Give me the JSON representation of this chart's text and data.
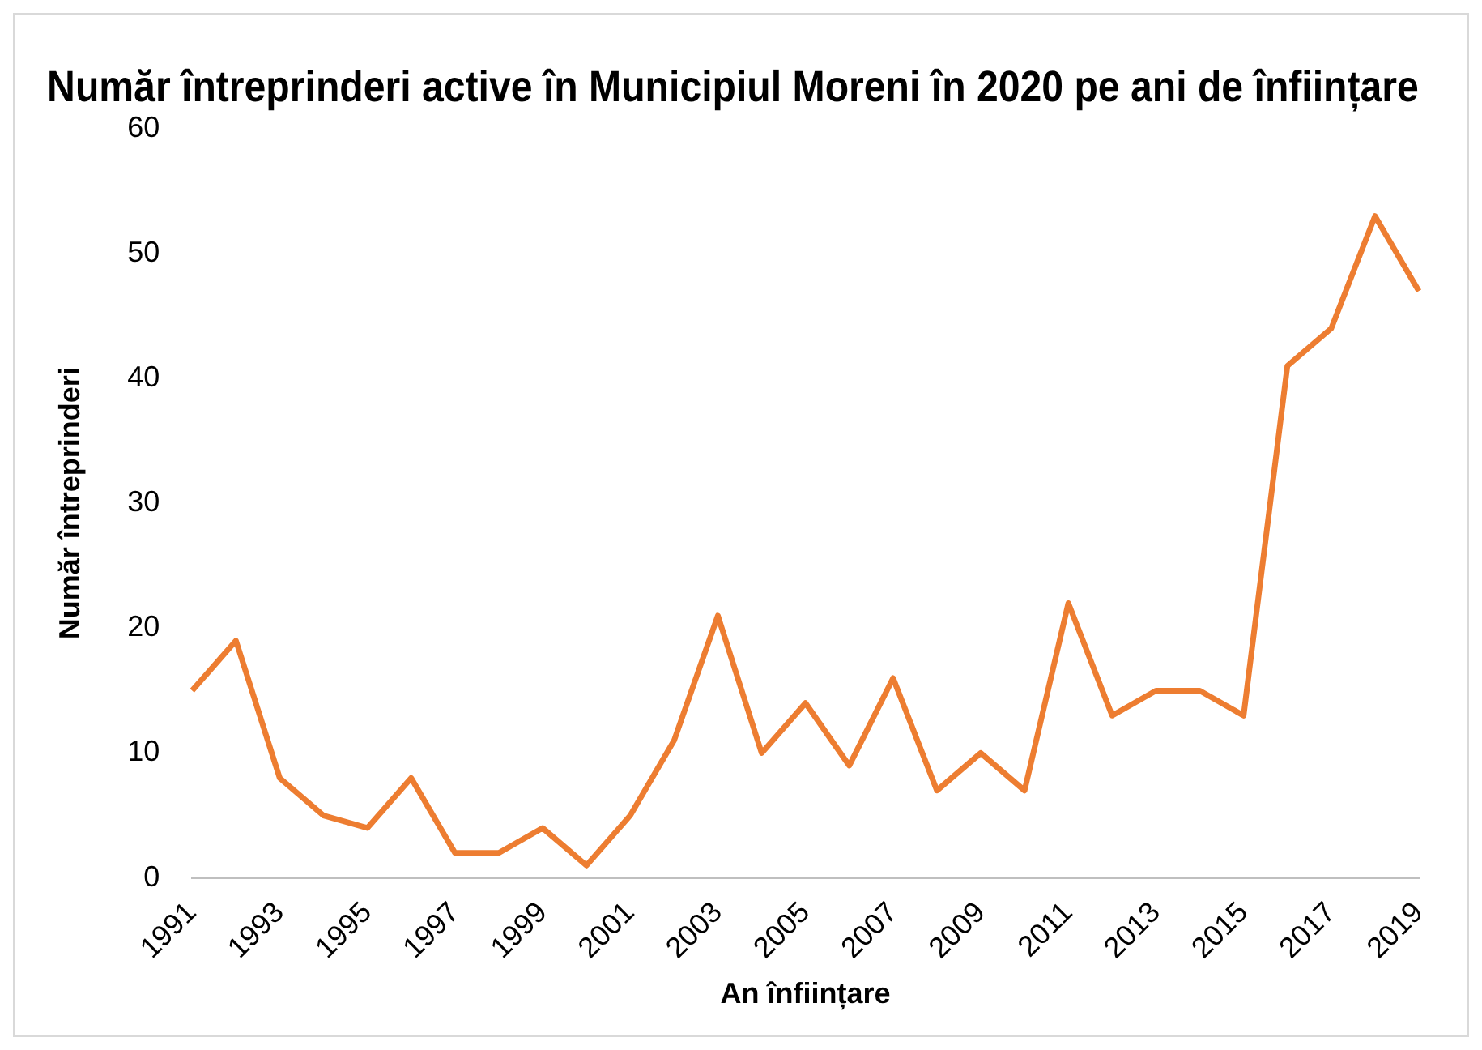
{
  "chart_data": {
    "type": "line",
    "title": "Număr întreprinderi active în Municipiul Moreni în 2020 pe ani de înființare",
    "xlabel": "An înființare",
    "ylabel": "Număr întreprinderi",
    "categories": [
      "1991",
      null,
      "1993",
      null,
      "1995",
      null,
      "1997",
      null,
      "1999",
      null,
      "2001",
      null,
      "2003",
      null,
      "2005",
      null,
      "2007",
      null,
      "2009",
      null,
      "2011",
      null,
      "2013",
      null,
      "2015",
      null,
      "2017",
      null,
      "2019"
    ],
    "series": [
      {
        "color": "#ed7d31",
        "values": [
          15,
          19,
          8,
          5,
          4,
          8,
          2,
          2,
          4,
          1,
          5,
          11,
          21,
          10,
          14,
          9,
          16,
          7,
          10,
          7,
          22,
          13,
          15,
          15,
          13,
          41,
          44,
          53,
          47
        ]
      }
    ],
    "ylim": [
      0,
      60
    ],
    "yticks": [
      0,
      10,
      20,
      30,
      40,
      50,
      60
    ],
    "grid": false,
    "legend": false,
    "marker": "none",
    "line_style": "solid"
  }
}
